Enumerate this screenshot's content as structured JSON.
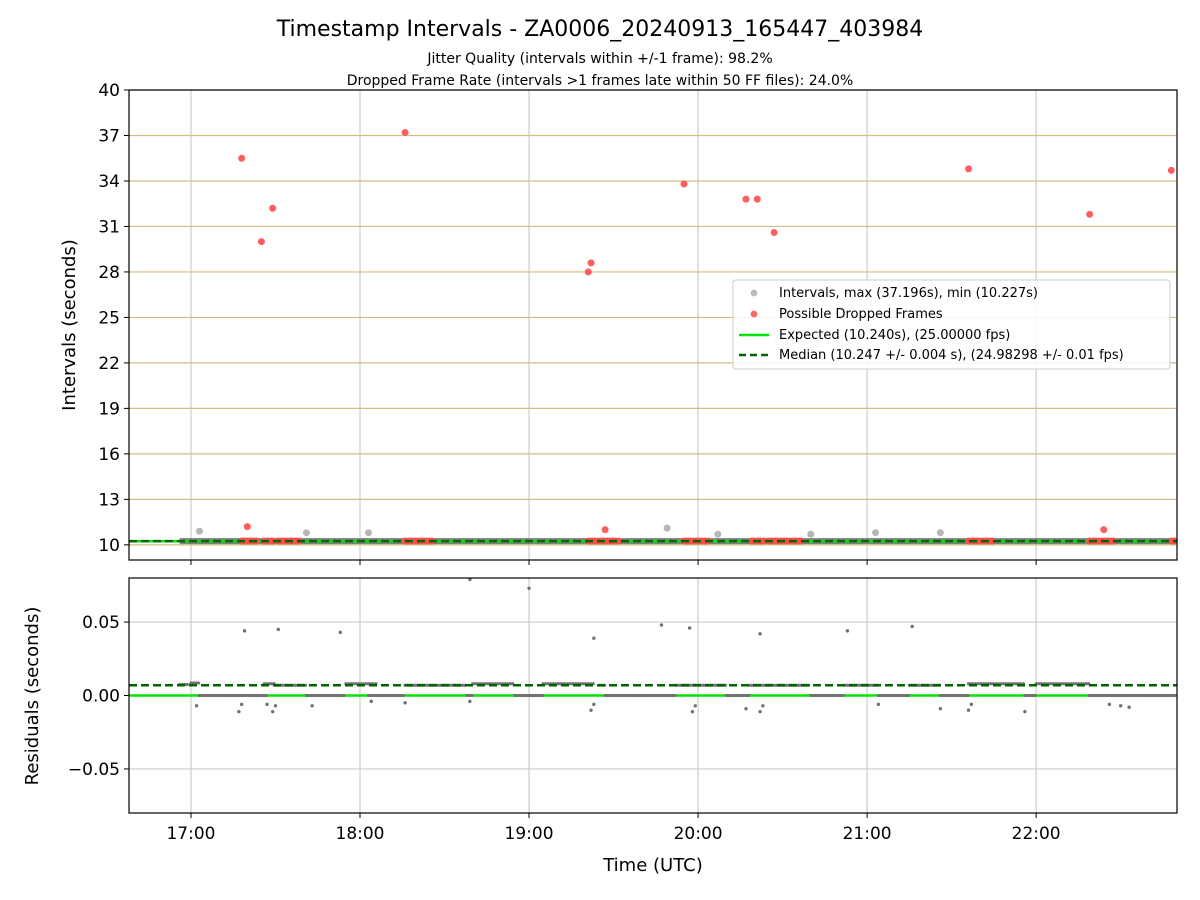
{
  "chart_data": [
    {
      "type": "scatter",
      "title": "Timestamp Intervals - ZA0006_20240913_165447_403984",
      "subtitle_lines": [
        "Jitter Quality (intervals within +/-1 frame): 98.2%",
        "Dropped Frame Rate (intervals >1 frames late within 50 FF files): 24.0%"
      ],
      "xlabel": "",
      "ylabel": "Intervals (seconds)",
      "x_range": [
        "16:38",
        "22:50"
      ],
      "ylim": [
        9,
        40
      ],
      "yticks": [
        "10",
        "13",
        "16",
        "19",
        "22",
        "25",
        "28",
        "31",
        "34",
        "37",
        "40"
      ],
      "grid": {
        "horizontal": true,
        "horizontal_color": "#d2be82",
        "vertical": true,
        "vertical_color": "#cccccc"
      },
      "legend_position": "center-right",
      "legend": [
        {
          "label": "Intervals, max (37.196s), min (10.227s)",
          "marker": "circle",
          "color": "#9e9e9e"
        },
        {
          "label": "Possible Dropped Frames",
          "marker": "circle",
          "color": "#ff4d4d"
        },
        {
          "label": "Expected (10.240s), (25.00000 fps)",
          "marker": "line",
          "color": "#00e600"
        },
        {
          "label": "Median (10.247 +/- 0.004 s), (24.98298 +/- 0.01 fps)",
          "marker": "dashed-line",
          "color": "#006400"
        }
      ],
      "series": [
        {
          "name": "Intervals, max (37.196s), min (10.227s)",
          "color": "#9e9e9e",
          "baseline_segment": {
            "x_start": "16:56",
            "x_end": "22:50",
            "y": 10.247
          },
          "points": [
            {
              "x": "17:03",
              "y": 10.9
            },
            {
              "x": "17:41",
              "y": 10.8
            },
            {
              "x": "18:03",
              "y": 10.8
            },
            {
              "x": "19:49",
              "y": 11.1
            },
            {
              "x": "20:07",
              "y": 10.7
            },
            {
              "x": "20:40",
              "y": 10.7
            },
            {
              "x": "21:03",
              "y": 10.8
            },
            {
              "x": "21:26",
              "y": 10.8
            }
          ]
        },
        {
          "name": "Possible Dropped Frames",
          "color": "#ff4d4d",
          "points": [
            {
              "x": "17:18",
              "y": 35.5
            },
            {
              "x": "17:25",
              "y": 30.0
            },
            {
              "x": "17:29",
              "y": 32.2
            },
            {
              "x": "17:20",
              "y": 11.2
            },
            {
              "x": "18:16",
              "y": 37.2
            },
            {
              "x": "19:21",
              "y": 28.0
            },
            {
              "x": "19:22",
              "y": 28.6
            },
            {
              "x": "19:27",
              "y": 11.0
            },
            {
              "x": "19:55",
              "y": 33.8
            },
            {
              "x": "20:17",
              "y": 32.8
            },
            {
              "x": "20:21",
              "y": 32.8
            },
            {
              "x": "20:27",
              "y": 30.6
            },
            {
              "x": "21:36",
              "y": 34.8
            },
            {
              "x": "22:19",
              "y": 31.8
            },
            {
              "x": "22:24",
              "y": 11.0
            },
            {
              "x": "22:48",
              "y": 34.7
            }
          ],
          "clusters_at_baseline": [
            {
              "x_start": "17:18",
              "x_end": "17:24"
            },
            {
              "x_start": "17:26",
              "x_end": "17:30"
            },
            {
              "x_start": "17:31",
              "x_end": "17:39"
            },
            {
              "x_start": "18:16",
              "x_end": "18:26"
            },
            {
              "x_start": "19:21",
              "x_end": "19:32"
            },
            {
              "x_start": "19:55",
              "x_end": "20:04"
            },
            {
              "x_start": "20:19",
              "x_end": "20:24"
            },
            {
              "x_start": "20:25",
              "x_end": "20:37"
            },
            {
              "x_start": "21:36",
              "x_end": "21:45"
            },
            {
              "x_start": "22:19",
              "x_end": "22:28"
            },
            {
              "x_start": "22:48",
              "x_end": "22:50"
            }
          ]
        },
        {
          "name": "Expected (10.240s), (25.00000 fps)",
          "color": "#00e600",
          "y": 10.24
        },
        {
          "name": "Median (10.247 +/- 0.004 s), (24.98298 +/- 0.01 fps)",
          "color": "#006400",
          "y": 10.247
        }
      ]
    },
    {
      "type": "scatter",
      "title": "",
      "xlabel": "Time (UTC)",
      "ylabel": "Residuals (seconds)",
      "x_range": [
        "16:38",
        "22:50"
      ],
      "ylim": [
        -0.08,
        0.08
      ],
      "xticks": [
        "17:00",
        "18:00",
        "19:00",
        "20:00",
        "21:00",
        "22:00"
      ],
      "yticks": [
        "−0.05",
        "0.00",
        "0.05"
      ],
      "grid": {
        "horizontal": true,
        "vertical": true,
        "color": "#cccccc"
      },
      "expected_line": {
        "y": 0.0,
        "color": "#00e600"
      },
      "median_line": {
        "y": 0.007,
        "color": "#006400"
      },
      "residual_color": "#707070",
      "baseline_bands": [
        {
          "x_start": "16:56",
          "x_end": "16:59",
          "y": 0.0075
        },
        {
          "x_start": "17:00",
          "x_end": "17:03",
          "y": 0.0085
        },
        {
          "x_start": "17:03",
          "x_end": "17:16",
          "y": 0.0
        },
        {
          "x_start": "17:16",
          "x_end": "17:27",
          "y": 0.0
        },
        {
          "x_start": "17:26",
          "x_end": "17:30",
          "y": 0.008
        },
        {
          "x_start": "17:30",
          "x_end": "17:41",
          "y": 0.007
        },
        {
          "x_start": "17:41",
          "x_end": "17:55",
          "y": 0.0
        },
        {
          "x_start": "17:55",
          "x_end": "18:06",
          "y": 0.008
        },
        {
          "x_start": "18:03",
          "x_end": "18:16",
          "y": 0.0
        },
        {
          "x_start": "18:16",
          "x_end": "18:38",
          "y": 0.007
        },
        {
          "x_start": "18:38",
          "x_end": "18:40",
          "y": 0.0
        },
        {
          "x_start": "18:40",
          "x_end": "18:55",
          "y": 0.008
        },
        {
          "x_start": "18:55",
          "x_end": "19:05",
          "y": 0.0
        },
        {
          "x_start": "19:05",
          "x_end": "19:23",
          "y": 0.008
        },
        {
          "x_start": "19:25",
          "x_end": "19:27",
          "y": 0.007
        },
        {
          "x_start": "19:27",
          "x_end": "19:52",
          "y": 0.0
        },
        {
          "x_start": "19:52",
          "x_end": "20:10",
          "y": 0.007
        },
        {
          "x_start": "20:10",
          "x_end": "20:18",
          "y": 0.0
        },
        {
          "x_start": "20:18",
          "x_end": "20:40",
          "y": 0.007
        },
        {
          "x_start": "20:40",
          "x_end": "20:52",
          "y": 0.0
        },
        {
          "x_start": "20:52",
          "x_end": "21:04",
          "y": 0.007
        },
        {
          "x_start": "21:04",
          "x_end": "21:15",
          "y": 0.0
        },
        {
          "x_start": "21:15",
          "x_end": "21:26",
          "y": 0.007
        },
        {
          "x_start": "21:26",
          "x_end": "21:36",
          "y": 0.0
        },
        {
          "x_start": "21:36",
          "x_end": "21:56",
          "y": 0.008
        },
        {
          "x_start": "21:56",
          "x_end": "22:00",
          "y": 0.0
        },
        {
          "x_start": "22:00",
          "x_end": "22:19",
          "y": 0.008
        },
        {
          "x_start": "22:19",
          "x_end": "22:50",
          "y": 0.0
        }
      ],
      "outliers": [
        {
          "x": "17:19",
          "y": 0.044
        },
        {
          "x": "17:31",
          "y": 0.045
        },
        {
          "x": "17:53",
          "y": 0.043
        },
        {
          "x": "18:39",
          "y": 0.079
        },
        {
          "x": "19:00",
          "y": 0.073
        },
        {
          "x": "19:23",
          "y": 0.039
        },
        {
          "x": "19:47",
          "y": 0.048
        },
        {
          "x": "19:57",
          "y": 0.046
        },
        {
          "x": "20:22",
          "y": 0.042
        },
        {
          "x": "20:53",
          "y": 0.044
        },
        {
          "x": "21:16",
          "y": 0.047
        },
        {
          "x": "17:02",
          "y": -0.007
        },
        {
          "x": "17:17",
          "y": -0.011
        },
        {
          "x": "17:18",
          "y": -0.006
        },
        {
          "x": "17:27",
          "y": -0.006
        },
        {
          "x": "17:29",
          "y": -0.011
        },
        {
          "x": "17:30",
          "y": -0.007
        },
        {
          "x": "17:43",
          "y": -0.007
        },
        {
          "x": "18:04",
          "y": -0.004
        },
        {
          "x": "18:16",
          "y": -0.005
        },
        {
          "x": "18:39",
          "y": -0.004
        },
        {
          "x": "19:22",
          "y": -0.01
        },
        {
          "x": "19:23",
          "y": -0.006
        },
        {
          "x": "19:58",
          "y": -0.011
        },
        {
          "x": "19:59",
          "y": -0.007
        },
        {
          "x": "20:17",
          "y": -0.009
        },
        {
          "x": "20:22",
          "y": -0.011
        },
        {
          "x": "20:23",
          "y": -0.007
        },
        {
          "x": "21:04",
          "y": -0.006
        },
        {
          "x": "21:26",
          "y": -0.009
        },
        {
          "x": "21:36",
          "y": -0.01
        },
        {
          "x": "21:37",
          "y": -0.006
        },
        {
          "x": "21:56",
          "y": -0.011
        },
        {
          "x": "22:26",
          "y": -0.006
        },
        {
          "x": "22:30",
          "y": -0.007
        },
        {
          "x": "22:33",
          "y": -0.008
        }
      ]
    }
  ]
}
